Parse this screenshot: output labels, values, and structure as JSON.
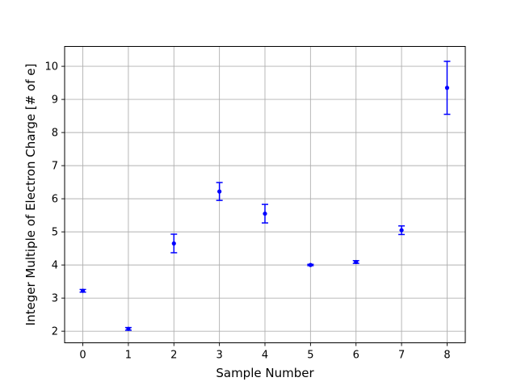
{
  "chart_data": {
    "type": "scatter",
    "title": "",
    "xlabel": "Sample Number",
    "ylabel": "Integer Multiple of Electron Charge [# of e]",
    "xlim": [
      -0.4,
      8.4
    ],
    "ylim": [
      1.65,
      10.6
    ],
    "xticks": [
      0,
      1,
      2,
      3,
      4,
      5,
      6,
      7,
      8
    ],
    "yticks": [
      2,
      3,
      4,
      5,
      6,
      7,
      8,
      9,
      10
    ],
    "grid": true,
    "marker_color": "#0000ff",
    "grid_color": "#b0b0b0",
    "series": [
      {
        "x": [
          0,
          1,
          2,
          3,
          4,
          5,
          6,
          7,
          8
        ],
        "y": [
          3.22,
          2.07,
          4.65,
          6.22,
          5.55,
          4.0,
          4.09,
          5.05,
          9.35
        ],
        "yerr": [
          0.04,
          0.04,
          0.28,
          0.27,
          0.28,
          0.02,
          0.04,
          0.13,
          0.8
        ]
      }
    ]
  }
}
